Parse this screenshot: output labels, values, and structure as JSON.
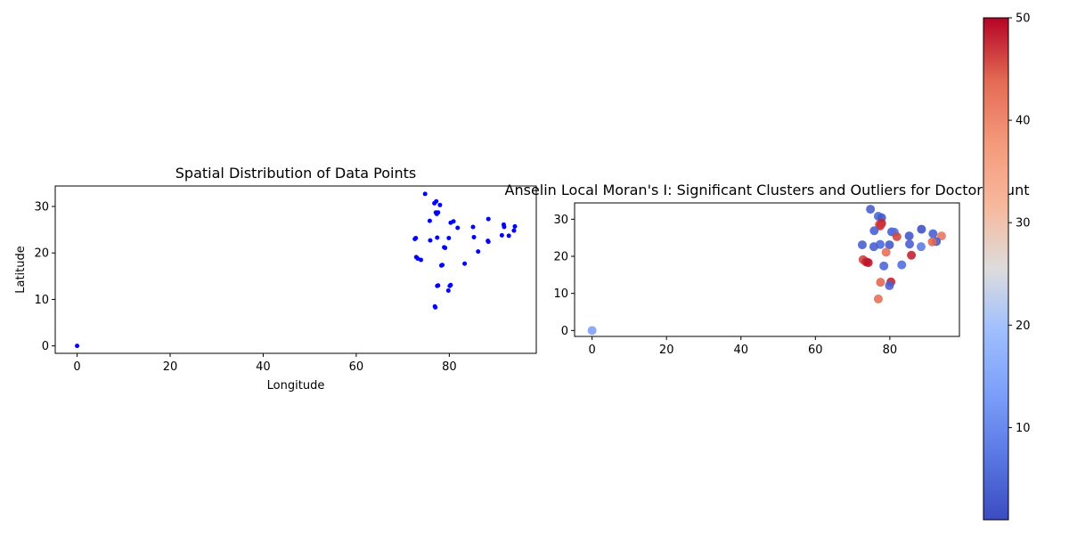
{
  "chart_data": [
    {
      "type": "scatter",
      "title": "Spatial Distribution of Data Points",
      "xlabel": "Longitude",
      "ylabel": "Latitude",
      "xlim": [
        -4.7,
        98.7
      ],
      "ylim": [
        -1.6,
        34.4
      ],
      "xticks": [
        0,
        20,
        40,
        60,
        80
      ],
      "yticks": [
        0,
        10,
        20,
        30
      ],
      "grid": false,
      "marker_color": "#0000ff",
      "points": [
        [
          0,
          0
        ],
        [
          74.8,
          32.7
        ],
        [
          76.8,
          30.7
        ],
        [
          77.2,
          31.1
        ],
        [
          78.0,
          30.3
        ],
        [
          77.1,
          28.7
        ],
        [
          77.6,
          28.7
        ],
        [
          77.3,
          28.4
        ],
        [
          75.8,
          26.9
        ],
        [
          80.3,
          26.5
        ],
        [
          80.9,
          26.8
        ],
        [
          81.8,
          25.4
        ],
        [
          85.1,
          25.6
        ],
        [
          88.4,
          27.3
        ],
        [
          91.7,
          26.1
        ],
        [
          91.8,
          25.6
        ],
        [
          94.1,
          25.7
        ],
        [
          93.9,
          24.8
        ],
        [
          92.8,
          23.7
        ],
        [
          91.3,
          23.8
        ],
        [
          88.3,
          22.6
        ],
        [
          88.4,
          22.4
        ],
        [
          85.3,
          23.4
        ],
        [
          86.2,
          20.3
        ],
        [
          79.9,
          23.2
        ],
        [
          77.4,
          23.3
        ],
        [
          75.9,
          22.7
        ],
        [
          72.6,
          23.0
        ],
        [
          72.8,
          23.2
        ],
        [
          72.9,
          19.1
        ],
        [
          73.2,
          18.8
        ],
        [
          73.9,
          18.5
        ],
        [
          78.5,
          17.4
        ],
        [
          78.3,
          17.3
        ],
        [
          83.3,
          17.7
        ],
        [
          79.1,
          21.1
        ],
        [
          78.9,
          21.2
        ],
        [
          77.6,
          13.0
        ],
        [
          77.4,
          12.9
        ],
        [
          80.3,
          13.1
        ],
        [
          80.1,
          12.9
        ],
        [
          79.8,
          11.9
        ],
        [
          76.9,
          8.5
        ],
        [
          77.0,
          8.3
        ]
      ]
    },
    {
      "type": "scatter",
      "title": "Anselin Local Moran's I: Significant Clusters and Outliers for Doctor Count",
      "xlabel": "",
      "ylabel": "",
      "xlim": [
        -4.7,
        98.7
      ],
      "ylim": [
        -1.6,
        34.4
      ],
      "xticks": [
        0,
        20,
        40,
        60,
        80
      ],
      "yticks": [
        0,
        10,
        20,
        30
      ],
      "grid": false,
      "colormap": "coolwarm",
      "color_range": [
        1,
        50
      ],
      "colorbar_ticks": [
        10,
        20,
        30,
        40,
        50
      ],
      "points": [
        {
          "x": 0,
          "y": 0,
          "v": 14
        },
        {
          "x": 74.8,
          "y": 32.7,
          "v": 4
        },
        {
          "x": 76.9,
          "y": 30.8,
          "v": 5
        },
        {
          "x": 77.8,
          "y": 30.4,
          "v": 3
        },
        {
          "x": 77.2,
          "y": 28.6,
          "v": 45
        },
        {
          "x": 77.8,
          "y": 28.9,
          "v": 48
        },
        {
          "x": 77.4,
          "y": 28.2,
          "v": 47
        },
        {
          "x": 75.8,
          "y": 26.9,
          "v": 4
        },
        {
          "x": 80.5,
          "y": 26.6,
          "v": 4
        },
        {
          "x": 81.2,
          "y": 26.5,
          "v": 6
        },
        {
          "x": 81.9,
          "y": 25.3,
          "v": 46
        },
        {
          "x": 85.2,
          "y": 25.5,
          "v": 3
        },
        {
          "x": 88.5,
          "y": 27.3,
          "v": 2
        },
        {
          "x": 91.6,
          "y": 26.1,
          "v": 4
        },
        {
          "x": 93.9,
          "y": 25.5,
          "v": 42
        },
        {
          "x": 92.5,
          "y": 24.0,
          "v": 3
        },
        {
          "x": 91.4,
          "y": 23.9,
          "v": 44
        },
        {
          "x": 88.4,
          "y": 22.6,
          "v": 8
        },
        {
          "x": 85.3,
          "y": 23.3,
          "v": 4
        },
        {
          "x": 85.8,
          "y": 20.3,
          "v": 48
        },
        {
          "x": 79.9,
          "y": 23.1,
          "v": 3
        },
        {
          "x": 77.4,
          "y": 23.2,
          "v": 5
        },
        {
          "x": 75.7,
          "y": 22.6,
          "v": 4
        },
        {
          "x": 72.6,
          "y": 23.1,
          "v": 4
        },
        {
          "x": 72.8,
          "y": 19.1,
          "v": 46
        },
        {
          "x": 73.6,
          "y": 18.5,
          "v": 48
        },
        {
          "x": 74.2,
          "y": 18.3,
          "v": 49
        },
        {
          "x": 78.4,
          "y": 17.4,
          "v": 5
        },
        {
          "x": 83.2,
          "y": 17.7,
          "v": 6
        },
        {
          "x": 79.0,
          "y": 21.1,
          "v": 43
        },
        {
          "x": 77.5,
          "y": 13.0,
          "v": 44
        },
        {
          "x": 80.3,
          "y": 13.1,
          "v": 48
        },
        {
          "x": 79.9,
          "y": 12.1,
          "v": 4
        },
        {
          "x": 76.9,
          "y": 8.5,
          "v": 43
        }
      ]
    }
  ]
}
